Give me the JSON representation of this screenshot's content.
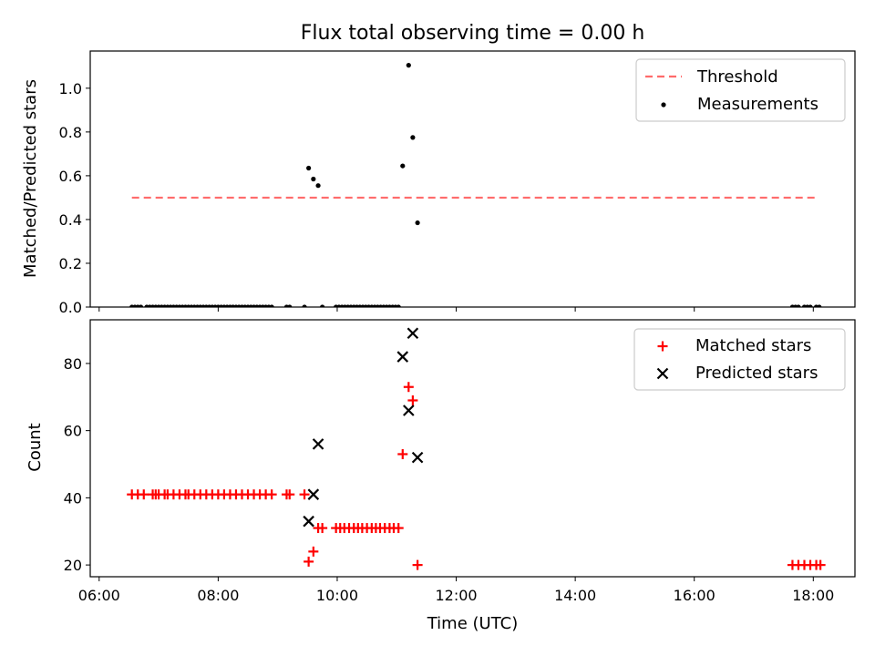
{
  "chart_data": {
    "title": "Flux total observing time = 0.00 h",
    "xlabel": "Time (UTC)",
    "x_ticks": [
      "06:00",
      "08:00",
      "10:00",
      "12:00",
      "14:00",
      "16:00",
      "18:00"
    ],
    "x_tick_hours": [
      6,
      8,
      10,
      12,
      14,
      16,
      18
    ],
    "xlim_hours": [
      5.85,
      18.7
    ],
    "panels": [
      {
        "type": "scatter",
        "ylabel": "Matched/Predicted stars",
        "ylim": [
          0,
          1.17
        ],
        "y_ticks": [
          0.0,
          0.2,
          0.4,
          0.6,
          0.8,
          1.0
        ],
        "y_tick_labels": [
          "0.0",
          "0.2",
          "0.4",
          "0.6",
          "0.8",
          "1.0"
        ],
        "legend_position": "top-right",
        "threshold": {
          "name": "Threshold",
          "value": 0.5,
          "x_range_hours": [
            6.55,
            18.05
          ],
          "color": "#ff6b6b"
        },
        "series": [
          {
            "name": "Measurements",
            "color": "#000000",
            "marker": "dot",
            "points": [
              [
                6.55,
                0
              ],
              [
                6.6,
                0
              ],
              [
                6.65,
                0
              ],
              [
                6.7,
                0
              ],
              [
                6.8,
                0
              ],
              [
                6.85,
                0
              ],
              [
                6.9,
                0
              ],
              [
                6.95,
                0
              ],
              [
                7.0,
                0
              ],
              [
                7.05,
                0
              ],
              [
                7.1,
                0
              ],
              [
                7.15,
                0
              ],
              [
                7.2,
                0
              ],
              [
                7.25,
                0
              ],
              [
                7.3,
                0
              ],
              [
                7.35,
                0
              ],
              [
                7.4,
                0
              ],
              [
                7.45,
                0
              ],
              [
                7.5,
                0
              ],
              [
                7.55,
                0
              ],
              [
                7.6,
                0
              ],
              [
                7.65,
                0
              ],
              [
                7.7,
                0
              ],
              [
                7.75,
                0
              ],
              [
                7.8,
                0
              ],
              [
                7.85,
                0
              ],
              [
                7.9,
                0
              ],
              [
                7.95,
                0
              ],
              [
                8.0,
                0
              ],
              [
                8.05,
                0
              ],
              [
                8.1,
                0
              ],
              [
                8.15,
                0
              ],
              [
                8.2,
                0
              ],
              [
                8.25,
                0
              ],
              [
                8.3,
                0
              ],
              [
                8.35,
                0
              ],
              [
                8.4,
                0
              ],
              [
                8.45,
                0
              ],
              [
                8.5,
                0
              ],
              [
                8.55,
                0
              ],
              [
                8.6,
                0
              ],
              [
                8.65,
                0
              ],
              [
                8.7,
                0
              ],
              [
                8.75,
                0
              ],
              [
                8.8,
                0
              ],
              [
                8.85,
                0
              ],
              [
                8.9,
                0
              ],
              [
                9.15,
                0
              ],
              [
                9.2,
                0
              ],
              [
                9.45,
                0
              ],
              [
                9.52,
                0.635
              ],
              [
                9.6,
                0.585
              ],
              [
                9.68,
                0.555
              ],
              [
                9.75,
                0
              ],
              [
                9.98,
                0
              ],
              [
                10.03,
                0
              ],
              [
                10.08,
                0
              ],
              [
                10.13,
                0
              ],
              [
                10.18,
                0
              ],
              [
                10.23,
                0
              ],
              [
                10.28,
                0
              ],
              [
                10.33,
                0
              ],
              [
                10.38,
                0
              ],
              [
                10.43,
                0
              ],
              [
                10.48,
                0
              ],
              [
                10.53,
                0
              ],
              [
                10.58,
                0
              ],
              [
                10.63,
                0
              ],
              [
                10.68,
                0
              ],
              [
                10.73,
                0
              ],
              [
                10.78,
                0
              ],
              [
                10.83,
                0
              ],
              [
                10.88,
                0
              ],
              [
                10.93,
                0
              ],
              [
                10.98,
                0
              ],
              [
                11.03,
                0
              ],
              [
                11.1,
                0.645
              ],
              [
                11.2,
                1.105
              ],
              [
                11.27,
                0.775
              ],
              [
                11.35,
                0.385
              ],
              [
                17.65,
                0
              ],
              [
                17.7,
                0
              ],
              [
                17.75,
                0
              ],
              [
                17.85,
                0
              ],
              [
                17.9,
                0
              ],
              [
                17.95,
                0
              ],
              [
                18.05,
                0
              ],
              [
                18.1,
                0
              ]
            ]
          }
        ]
      },
      {
        "type": "scatter",
        "ylabel": "Count",
        "ylim": [
          16.5,
          93
        ],
        "y_ticks": [
          20,
          40,
          60,
          80
        ],
        "y_tick_labels": [
          "20",
          "40",
          "60",
          "80"
        ],
        "legend_position": "top-right",
        "series": [
          {
            "name": "Matched stars",
            "color": "#ff0000",
            "marker": "plus",
            "points": [
              [
                6.55,
                41
              ],
              [
                6.65,
                41
              ],
              [
                6.75,
                41
              ],
              [
                6.9,
                41
              ],
              [
                6.95,
                41
              ],
              [
                7.0,
                41
              ],
              [
                7.1,
                41
              ],
              [
                7.15,
                41
              ],
              [
                7.25,
                41
              ],
              [
                7.35,
                41
              ],
              [
                7.45,
                41
              ],
              [
                7.5,
                41
              ],
              [
                7.6,
                41
              ],
              [
                7.7,
                41
              ],
              [
                7.8,
                41
              ],
              [
                7.9,
                41
              ],
              [
                8.0,
                41
              ],
              [
                8.1,
                41
              ],
              [
                8.2,
                41
              ],
              [
                8.3,
                41
              ],
              [
                8.4,
                41
              ],
              [
                8.5,
                41
              ],
              [
                8.6,
                41
              ],
              [
                8.7,
                41
              ],
              [
                8.8,
                41
              ],
              [
                8.9,
                41
              ],
              [
                9.15,
                41
              ],
              [
                9.2,
                41
              ],
              [
                9.45,
                41
              ],
              [
                9.52,
                21
              ],
              [
                9.6,
                24
              ],
              [
                9.68,
                31
              ],
              [
                9.75,
                31
              ],
              [
                9.98,
                31
              ],
              [
                10.05,
                31
              ],
              [
                10.12,
                31
              ],
              [
                10.2,
                31
              ],
              [
                10.28,
                31
              ],
              [
                10.35,
                31
              ],
              [
                10.42,
                31
              ],
              [
                10.5,
                31
              ],
              [
                10.58,
                31
              ],
              [
                10.65,
                31
              ],
              [
                10.72,
                31
              ],
              [
                10.8,
                31
              ],
              [
                10.88,
                31
              ],
              [
                10.95,
                31
              ],
              [
                11.03,
                31
              ],
              [
                11.1,
                53
              ],
              [
                11.2,
                73
              ],
              [
                11.27,
                69
              ],
              [
                11.35,
                20
              ],
              [
                17.65,
                20
              ],
              [
                17.75,
                20
              ],
              [
                17.85,
                20
              ],
              [
                17.95,
                20
              ],
              [
                18.05,
                20
              ],
              [
                18.12,
                20
              ]
            ]
          },
          {
            "name": "Predicted stars",
            "color": "#000000",
            "marker": "x",
            "points": [
              [
                9.52,
                33
              ],
              [
                9.6,
                41
              ],
              [
                9.68,
                56
              ],
              [
                11.1,
                82
              ],
              [
                11.2,
                66
              ],
              [
                11.27,
                89
              ],
              [
                11.35,
                52
              ]
            ]
          }
        ]
      }
    ]
  }
}
